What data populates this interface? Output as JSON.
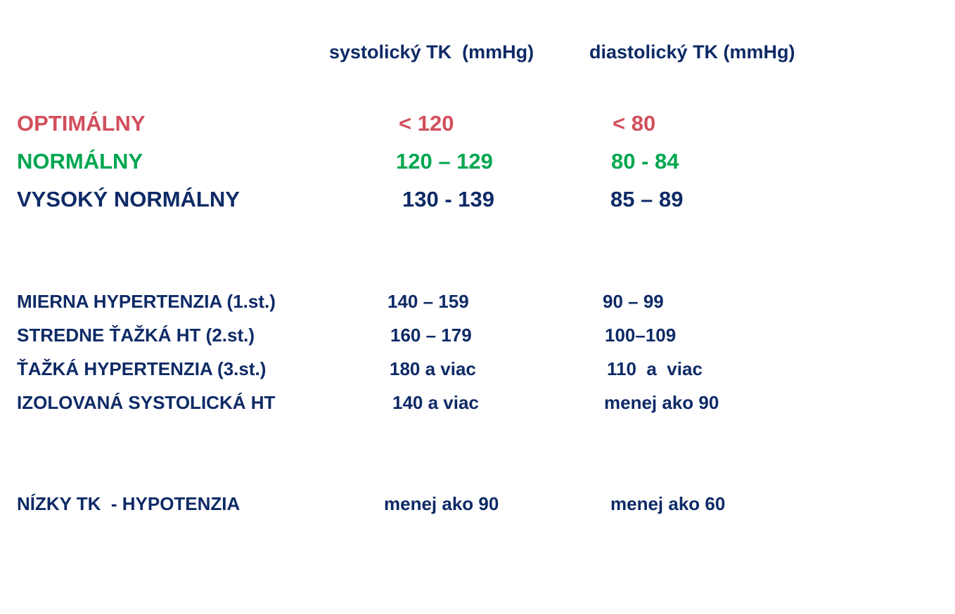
{
  "headers": {
    "systolic": "systolický TK  (mmHg)",
    "diastolic": "diastolický TK (mmHg)"
  },
  "rows": [
    {
      "label": "OPTIMÁLNY",
      "systolic": "< 120",
      "diastolic": "< 80",
      "color": "#d24f5c"
    },
    {
      "label": "NORMÁLNY",
      "systolic": "120 – 129",
      "diastolic": "80 - 84",
      "color": "#00a650"
    },
    {
      "label": "VYSOKÝ NORMÁLNY",
      "systolic": "130 - 139",
      "diastolic": "85 – 89",
      "color": "#0e2a66"
    },
    {
      "label": "MIERNA HYPERTENZIA (1.st.)",
      "systolic": "140 – 159",
      "diastolic": "90 – 99",
      "color": "#0e2a66"
    },
    {
      "label": "STREDNE ŤAŽKÁ HT (2.st.)",
      "systolic": "160 – 179",
      "diastolic": "100–109",
      "color": "#0e2a66"
    },
    {
      "label": "ŤAŽKÁ HYPERTENZIA (3.st.)",
      "systolic": "180 a viac",
      "diastolic": "110  a  viac",
      "color": "#0e2a66"
    },
    {
      "label": "IZOLOVANÁ SYSTOLICKÁ HT",
      "systolic": "140 a viac",
      "diastolic": "menej ako 90",
      "color": "#0e2a66"
    },
    {
      "label": "NÍZKY TK  - HYPOTENZIA",
      "systolic": "menej ako 90",
      "diastolic": "menej ako 60",
      "color": "#0e2a66"
    }
  ]
}
